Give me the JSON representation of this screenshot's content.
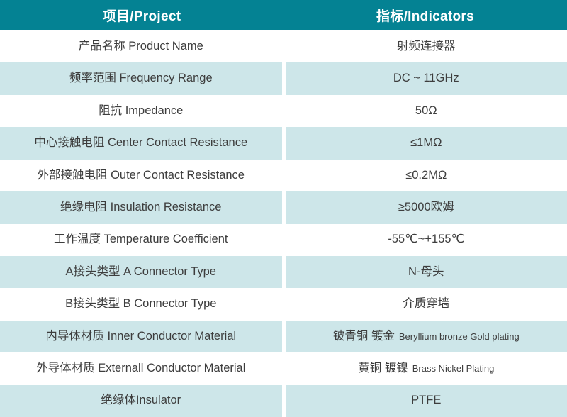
{
  "colors": {
    "header_bg": "#048293",
    "header_text": "#ffffff",
    "row_bg": "#ffffff",
    "row_alt_bg": "#cde6e9",
    "text": "#3d3d3d"
  },
  "header": {
    "project": "项目/Project",
    "indicators": "指标/Indicators"
  },
  "rows": [
    {
      "project": "产品名称 Product Name",
      "indicator": "射频连接器"
    },
    {
      "project": "频率范围 Frequency Range",
      "indicator": "DC ~ 11GHz"
    },
    {
      "project": "阻抗 Impedance",
      "indicator": "50Ω"
    },
    {
      "project": "中心接触电阻 Center Contact Resistance",
      "indicator": "≤1MΩ"
    },
    {
      "project": "外部接触电阻 Outer Contact Resistance",
      "indicator": "≤0.2MΩ"
    },
    {
      "project": "绝缘电阻 Insulation Resistance",
      "indicator": "≥5000欧姆"
    },
    {
      "project": "工作温度 Temperature Coefficient",
      "indicator": "-55℃~+155℃"
    },
    {
      "project": "A接头类型 A Connector Type",
      "indicator": "N-母头"
    },
    {
      "project": "B接头类型 B Connector Type",
      "indicator": "介质穿墙"
    },
    {
      "project": "内导体材质 Inner Conductor Material",
      "indicator": "铍青铜 镀金",
      "indicator_sub": "Beryllium bronze Gold plating"
    },
    {
      "project": "外导体材质 Externall Conductor Material",
      "indicator": "黄铜 镀镍",
      "indicator_sub": "Brass Nickel Plating"
    },
    {
      "project": "绝缘体Insulator",
      "indicator": "PTFE"
    }
  ]
}
